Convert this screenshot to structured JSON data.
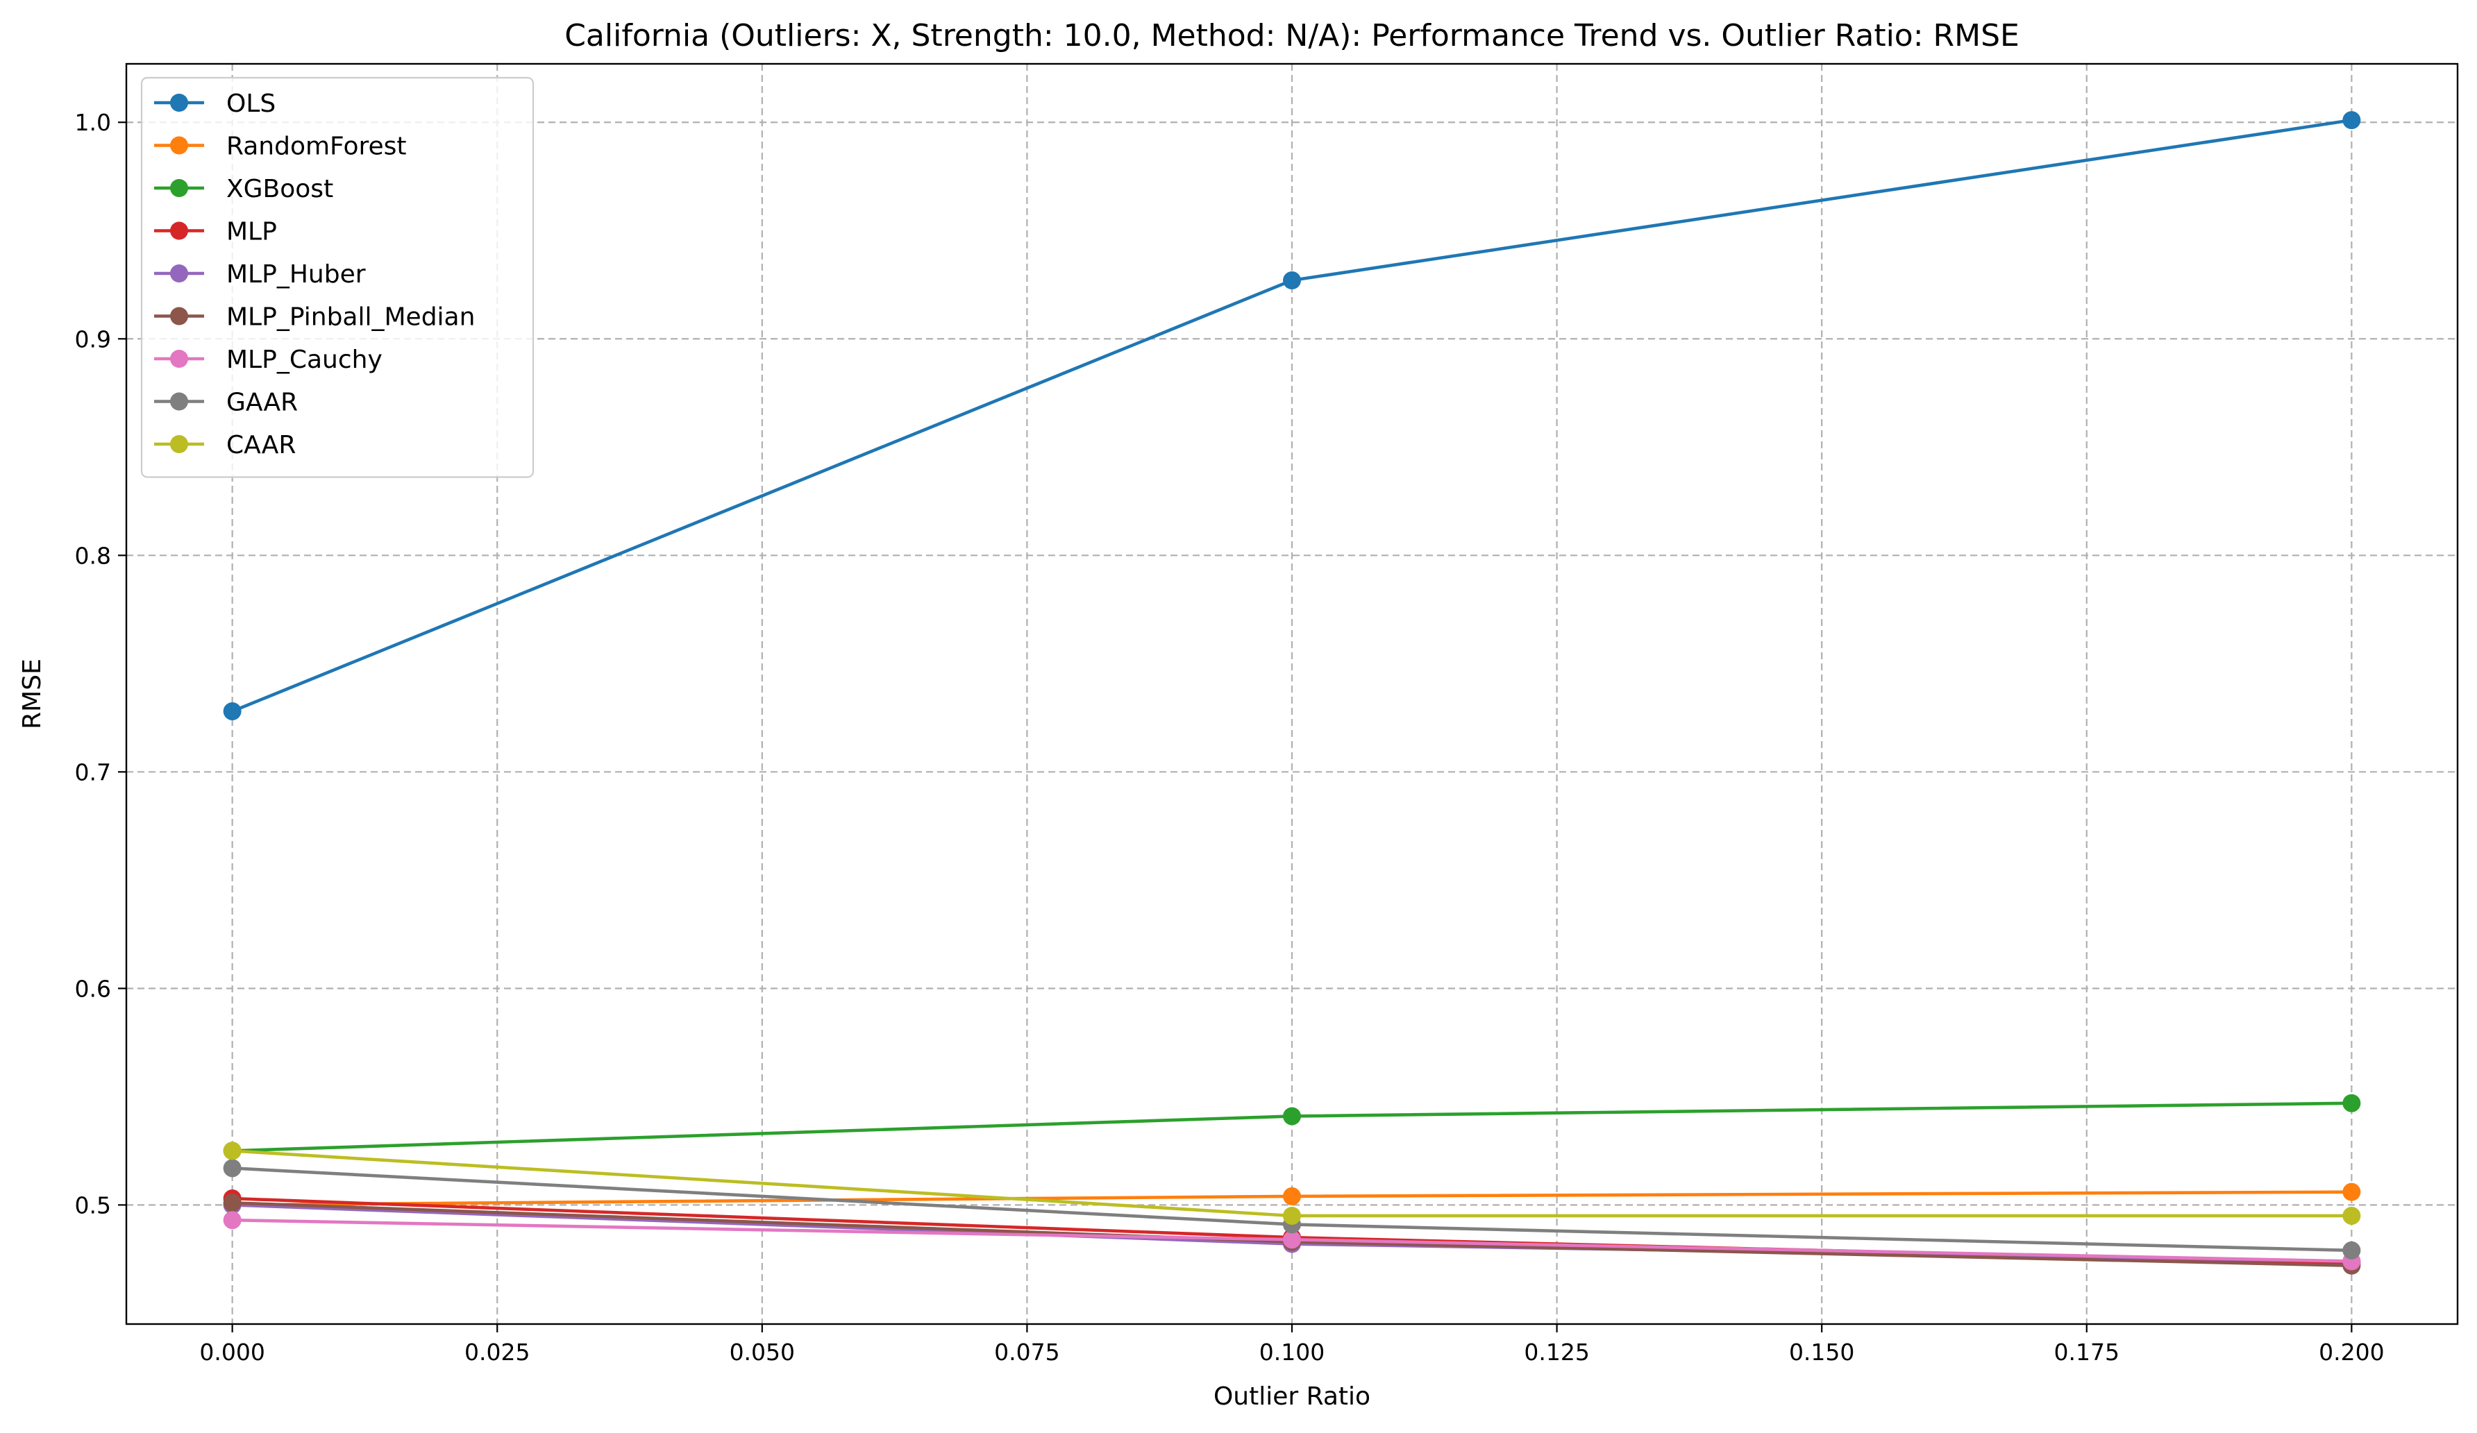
{
  "chart_data": {
    "type": "line",
    "title": "California (Outliers: X, Strength: 10.0, Method: N/A): Performance Trend vs. Outlier Ratio: RMSE",
    "xlabel": "Outlier Ratio",
    "ylabel": "RMSE",
    "xlim": [
      -0.01,
      0.21
    ],
    "ylim": [
      0.445,
      1.027
    ],
    "x_ticks": [
      0.0,
      0.025,
      0.05,
      0.075,
      0.1,
      0.125,
      0.15,
      0.175,
      0.2
    ],
    "x_tick_labels": [
      "0.000",
      "0.025",
      "0.050",
      "0.075",
      "0.100",
      "0.125",
      "0.150",
      "0.175",
      "0.200"
    ],
    "y_ticks": [
      0.5,
      0.6,
      0.7,
      0.8,
      0.9,
      1.0
    ],
    "y_tick_labels": [
      "0.5",
      "0.6",
      "0.7",
      "0.8",
      "0.9",
      "1.0"
    ],
    "grid": true,
    "legend_position": "top-left",
    "x": [
      0.0,
      0.1,
      0.2
    ],
    "series": [
      {
        "name": "OLS",
        "color": "#1f77b4",
        "values": [
          0.728,
          0.927,
          1.001
        ]
      },
      {
        "name": "RandomForest",
        "color": "#ff7f0e",
        "values": [
          0.5,
          0.504,
          0.506
        ]
      },
      {
        "name": "XGBoost",
        "color": "#2ca02c",
        "values": [
          0.525,
          0.541,
          0.547
        ]
      },
      {
        "name": "MLP",
        "color": "#d62728",
        "values": [
          0.503,
          0.485,
          0.473
        ]
      },
      {
        "name": "MLP_Huber",
        "color": "#9467bd",
        "values": [
          0.5,
          0.482,
          0.474
        ]
      },
      {
        "name": "MLP_Pinball_Median",
        "color": "#8c564b",
        "values": [
          0.501,
          0.483,
          0.472
        ]
      },
      {
        "name": "MLP_Cauchy",
        "color": "#e377c2",
        "values": [
          0.493,
          0.484,
          0.474
        ]
      },
      {
        "name": "GAAR",
        "color": "#7f7f7f",
        "values": [
          0.517,
          0.491,
          0.479
        ]
      },
      {
        "name": "CAAR",
        "color": "#bcbd22",
        "values": [
          0.525,
          0.495,
          0.495
        ]
      }
    ]
  }
}
